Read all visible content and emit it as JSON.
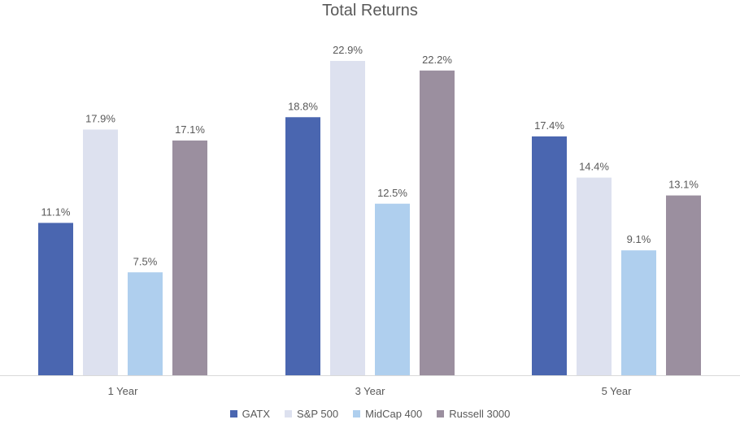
{
  "chart_data": {
    "type": "bar",
    "title": "Total Returns",
    "categories": [
      "1 Year",
      "3 Year",
      "5 Year"
    ],
    "series": [
      {
        "name": "GATX",
        "color": "#4a66b0",
        "values": [
          11.1,
          18.8,
          17.4
        ],
        "labels": [
          "11.1%",
          "18.8%",
          "17.4%"
        ]
      },
      {
        "name": "S&P 500",
        "color": "#dde1ef",
        "values": [
          17.9,
          22.9,
          14.4
        ],
        "labels": [
          "17.9%",
          "22.9%",
          "14.4%"
        ]
      },
      {
        "name": "MidCap 400",
        "color": "#afcfee",
        "values": [
          7.5,
          12.5,
          9.1
        ],
        "labels": [
          "7.5%",
          "12.5%",
          "9.1%"
        ]
      },
      {
        "name": "Russell 3000",
        "color": "#9b8f9f",
        "values": [
          17.1,
          22.2,
          13.1
        ],
        "labels": [
          "17.1%",
          "22.2%",
          "13.1%"
        ]
      }
    ],
    "ylim": [
      0,
      24
    ],
    "grid": false,
    "legend_position": "bottom"
  }
}
